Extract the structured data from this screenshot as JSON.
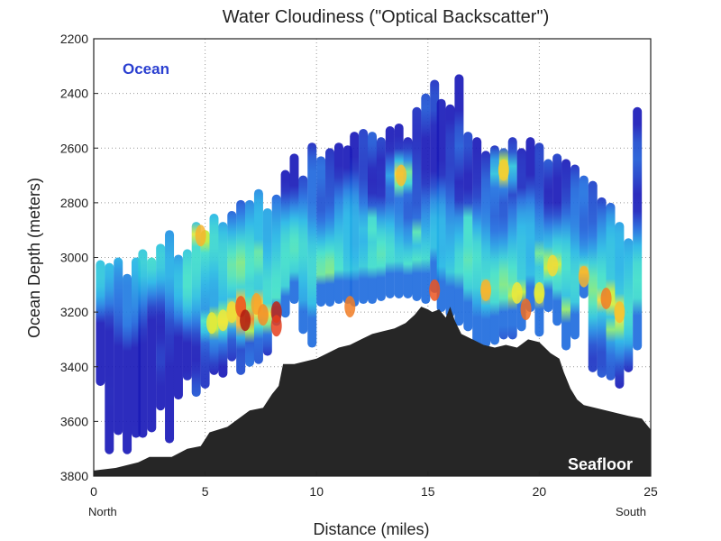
{
  "chart_data": {
    "type": "heatmap",
    "title": "Water Cloudiness (\"Optical Backscatter\")",
    "xlabel": "Distance (miles)",
    "ylabel": "Ocean Depth (meters)",
    "xlim": [
      0,
      25
    ],
    "ylim": [
      2200,
      3800
    ],
    "y_inverted": true,
    "x_ticks": [
      0,
      5,
      10,
      15,
      20,
      25
    ],
    "y_ticks": [
      2200,
      2400,
      2600,
      2800,
      3000,
      3200,
      3400,
      3600,
      3800
    ],
    "grid": true,
    "x_start_label": "North",
    "x_end_label": "South",
    "annotations": {
      "ocean": "Ocean",
      "seafloor": "Seafloor"
    },
    "colorscale": [
      "#1a1ab8",
      "#1f6fe0",
      "#22b5e6",
      "#3fe0c8",
      "#b8ee3c",
      "#f0e83a",
      "#f7a52a",
      "#e8401e",
      "#a3140e"
    ],
    "casts": [
      {
        "x": 0.3,
        "top": 3010,
        "bottom": 3470
      },
      {
        "x": 0.7,
        "top": 3020,
        "bottom": 3720
      },
      {
        "x": 1.1,
        "top": 3000,
        "bottom": 3650
      },
      {
        "x": 1.5,
        "top": 3060,
        "bottom": 3720
      },
      {
        "x": 1.9,
        "top": 3000,
        "bottom": 3660
      },
      {
        "x": 2.2,
        "top": 2970,
        "bottom": 3660
      },
      {
        "x": 2.6,
        "top": 3000,
        "bottom": 3640
      },
      {
        "x": 3.0,
        "top": 2950,
        "bottom": 3560
      },
      {
        "x": 3.4,
        "top": 2900,
        "bottom": 3680
      },
      {
        "x": 3.8,
        "top": 2990,
        "bottom": 3520
      },
      {
        "x": 4.2,
        "top": 2970,
        "bottom": 3450
      },
      {
        "x": 4.6,
        "top": 2870,
        "bottom": 3510
      },
      {
        "x": 5.0,
        "top": 2900,
        "bottom": 3480
      },
      {
        "x": 5.4,
        "top": 2840,
        "bottom": 3430
      },
      {
        "x": 5.8,
        "top": 2870,
        "bottom": 3440
      },
      {
        "x": 6.2,
        "top": 2830,
        "bottom": 3380
      },
      {
        "x": 6.6,
        "top": 2790,
        "bottom": 3430
      },
      {
        "x": 7.0,
        "top": 2790,
        "bottom": 3400
      },
      {
        "x": 7.4,
        "top": 2750,
        "bottom": 3390
      },
      {
        "x": 7.8,
        "top": 2820,
        "bottom": 3360
      },
      {
        "x": 8.2,
        "top": 2770,
        "bottom": 3250
      },
      {
        "x": 8.6,
        "top": 2680,
        "bottom": 3220
      },
      {
        "x": 9.0,
        "top": 2620,
        "bottom": 3170
      },
      {
        "x": 9.4,
        "top": 2700,
        "bottom": 3280
      },
      {
        "x": 9.8,
        "top": 2580,
        "bottom": 3330
      },
      {
        "x": 10.2,
        "top": 2630,
        "bottom": 3180
      },
      {
        "x": 10.6,
        "top": 2600,
        "bottom": 3180
      },
      {
        "x": 11.0,
        "top": 2580,
        "bottom": 3170
      },
      {
        "x": 11.4,
        "top": 2590,
        "bottom": 3170
      },
      {
        "x": 11.7,
        "top": 2540,
        "bottom": 3180
      },
      {
        "x": 12.1,
        "top": 2530,
        "bottom": 3170
      },
      {
        "x": 12.5,
        "top": 2540,
        "bottom": 3170
      },
      {
        "x": 12.9,
        "top": 2560,
        "bottom": 3160
      },
      {
        "x": 13.3,
        "top": 2520,
        "bottom": 3150
      },
      {
        "x": 13.7,
        "top": 2510,
        "bottom": 3150
      },
      {
        "x": 14.1,
        "top": 2560,
        "bottom": 3150
      },
      {
        "x": 14.5,
        "top": 2450,
        "bottom": 3160
      },
      {
        "x": 14.9,
        "top": 2400,
        "bottom": 3170
      },
      {
        "x": 15.3,
        "top": 2350,
        "bottom": 3130
      },
      {
        "x": 15.6,
        "top": 2420,
        "bottom": 3200
      },
      {
        "x": 16.0,
        "top": 2440,
        "bottom": 3220
      },
      {
        "x": 16.4,
        "top": 2330,
        "bottom": 3250
      },
      {
        "x": 16.8,
        "top": 2540,
        "bottom": 3270
      },
      {
        "x": 17.2,
        "top": 2560,
        "bottom": 3330
      },
      {
        "x": 17.6,
        "top": 2610,
        "bottom": 3330
      },
      {
        "x": 18.0,
        "top": 2590,
        "bottom": 3320
      },
      {
        "x": 18.4,
        "top": 2600,
        "bottom": 3300
      },
      {
        "x": 18.8,
        "top": 2560,
        "bottom": 3300
      },
      {
        "x": 19.2,
        "top": 2600,
        "bottom": 3270
      },
      {
        "x": 19.6,
        "top": 2560,
        "bottom": 3200
      },
      {
        "x": 20.0,
        "top": 2580,
        "bottom": 3290
      },
      {
        "x": 20.4,
        "top": 2640,
        "bottom": 3200
      },
      {
        "x": 20.8,
        "top": 2620,
        "bottom": 3250
      },
      {
        "x": 21.2,
        "top": 2640,
        "bottom": 3340
      },
      {
        "x": 21.6,
        "top": 2660,
        "bottom": 3300
      },
      {
        "x": 22.0,
        "top": 2700,
        "bottom": 3150
      },
      {
        "x": 22.4,
        "top": 2720,
        "bottom": 3420
      },
      {
        "x": 22.8,
        "top": 2780,
        "bottom": 3440
      },
      {
        "x": 23.2,
        "top": 2800,
        "bottom": 3450
      },
      {
        "x": 23.6,
        "top": 2870,
        "bottom": 3480
      },
      {
        "x": 24.0,
        "top": 2930,
        "bottom": 3420
      },
      {
        "x": 24.4,
        "top": 2450,
        "bottom": 3340
      }
    ],
    "hotspots": [
      {
        "x": 4.8,
        "y": 2920,
        "value": 0.72
      },
      {
        "x": 5.3,
        "y": 3240,
        "value": 0.6
      },
      {
        "x": 5.8,
        "y": 3230,
        "value": 0.62
      },
      {
        "x": 6.2,
        "y": 3200,
        "value": 0.65
      },
      {
        "x": 6.6,
        "y": 3180,
        "value": 0.85
      },
      {
        "x": 6.8,
        "y": 3230,
        "value": 0.98
      },
      {
        "x": 7.3,
        "y": 3170,
        "value": 0.75
      },
      {
        "x": 7.6,
        "y": 3210,
        "value": 0.78
      },
      {
        "x": 8.2,
        "y": 3200,
        "value": 0.95
      },
      {
        "x": 8.2,
        "y": 3250,
        "value": 0.88
      },
      {
        "x": 7.3,
        "y": 3000,
        "value": 0.5
      },
      {
        "x": 9.6,
        "y": 3230,
        "value": 0.5
      },
      {
        "x": 11.5,
        "y": 3180,
        "value": 0.8
      },
      {
        "x": 13.8,
        "y": 2700,
        "value": 0.7
      },
      {
        "x": 15.3,
        "y": 3120,
        "value": 0.85
      },
      {
        "x": 17.6,
        "y": 3120,
        "value": 0.72
      },
      {
        "x": 18.4,
        "y": 2680,
        "value": 0.68
      },
      {
        "x": 19.0,
        "y": 3130,
        "value": 0.62
      },
      {
        "x": 19.4,
        "y": 3190,
        "value": 0.82
      },
      {
        "x": 20.0,
        "y": 3130,
        "value": 0.6
      },
      {
        "x": 20.2,
        "y": 3000,
        "value": 0.55
      },
      {
        "x": 20.6,
        "y": 3030,
        "value": 0.65
      },
      {
        "x": 21.0,
        "y": 3180,
        "value": 0.58
      },
      {
        "x": 22.0,
        "y": 3070,
        "value": 0.72
      },
      {
        "x": 23.0,
        "y": 3150,
        "value": 0.8
      },
      {
        "x": 23.4,
        "y": 3260,
        "value": 0.55
      },
      {
        "x": 23.6,
        "y": 3200,
        "value": 0.7
      },
      {
        "x": 16.8,
        "y": 2880,
        "value": 0.45
      },
      {
        "x": 12.4,
        "y": 2880,
        "value": 0.45
      },
      {
        "x": 14.5,
        "y": 2920,
        "value": 0.42
      },
      {
        "x": 10.4,
        "y": 2980,
        "value": 0.45
      }
    ],
    "seafloor": [
      [
        0,
        3780
      ],
      [
        1,
        3770
      ],
      [
        2,
        3750
      ],
      [
        2.5,
        3730
      ],
      [
        3.5,
        3730
      ],
      [
        4.2,
        3700
      ],
      [
        4.8,
        3690
      ],
      [
        5.2,
        3640
      ],
      [
        6.0,
        3620
      ],
      [
        7.0,
        3560
      ],
      [
        7.6,
        3550
      ],
      [
        8.0,
        3500
      ],
      [
        8.3,
        3470
      ],
      [
        8.5,
        3390
      ],
      [
        9.0,
        3390
      ],
      [
        9.5,
        3380
      ],
      [
        10.0,
        3370
      ],
      [
        10.5,
        3350
      ],
      [
        11.0,
        3330
      ],
      [
        11.5,
        3320
      ],
      [
        12.0,
        3300
      ],
      [
        12.5,
        3280
      ],
      [
        13.0,
        3270
      ],
      [
        13.5,
        3260
      ],
      [
        14.0,
        3240
      ],
      [
        14.4,
        3210
      ],
      [
        14.7,
        3180
      ],
      [
        15.0,
        3190
      ],
      [
        15.2,
        3200
      ],
      [
        15.5,
        3190
      ],
      [
        15.8,
        3220
      ],
      [
        16.0,
        3180
      ],
      [
        16.2,
        3230
      ],
      [
        16.5,
        3280
      ],
      [
        17.0,
        3300
      ],
      [
        17.5,
        3320
      ],
      [
        18.0,
        3330
      ],
      [
        18.5,
        3320
      ],
      [
        19.0,
        3330
      ],
      [
        19.5,
        3300
      ],
      [
        20.0,
        3310
      ],
      [
        20.5,
        3350
      ],
      [
        20.9,
        3370
      ],
      [
        21.1,
        3420
      ],
      [
        21.4,
        3480
      ],
      [
        21.7,
        3520
      ],
      [
        22.0,
        3540
      ],
      [
        22.5,
        3550
      ],
      [
        23.0,
        3560
      ],
      [
        23.5,
        3570
      ],
      [
        24.0,
        3580
      ],
      [
        24.6,
        3590
      ],
      [
        25,
        3630
      ],
      [
        25,
        3800
      ],
      [
        0,
        3800
      ]
    ]
  }
}
